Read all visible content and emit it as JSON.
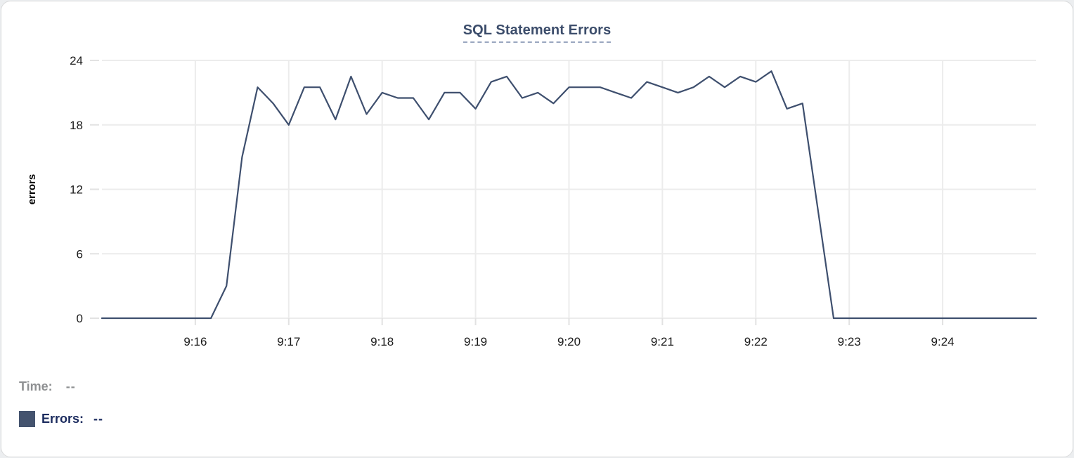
{
  "panel": {
    "background": "#ffffff",
    "border_color": "#d9dadb"
  },
  "chart_data": {
    "type": "line",
    "title": "SQL Statement Errors",
    "ylabel": "errors",
    "xlabel": "",
    "ylim": [
      0,
      24
    ],
    "y_ticks": [
      0,
      6,
      12,
      18,
      24
    ],
    "x_tick_labels": [
      "9:16",
      "9:17",
      "9:18",
      "9:19",
      "9:20",
      "9:21",
      "9:22",
      "9:23",
      "9:24"
    ],
    "x_start": "9:15:00",
    "x_end": "9:25:00",
    "sample_interval_seconds": 10,
    "grid": true,
    "legend_position": "bottom-left",
    "series": [
      {
        "name": "Errors",
        "color": "#3e4f6e",
        "times": [
          "9:15:00",
          "9:15:10",
          "9:15:20",
          "9:15:30",
          "9:15:40",
          "9:15:50",
          "9:16:00",
          "9:16:10",
          "9:16:20",
          "9:16:30",
          "9:16:40",
          "9:16:50",
          "9:17:00",
          "9:17:10",
          "9:17:20",
          "9:17:30",
          "9:17:40",
          "9:17:50",
          "9:18:00",
          "9:18:10",
          "9:18:20",
          "9:18:30",
          "9:18:40",
          "9:18:50",
          "9:19:00",
          "9:19:10",
          "9:19:20",
          "9:19:30",
          "9:19:40",
          "9:19:50",
          "9:20:00",
          "9:20:10",
          "9:20:20",
          "9:20:30",
          "9:20:40",
          "9:20:50",
          "9:21:00",
          "9:21:10",
          "9:21:20",
          "9:21:30",
          "9:21:40",
          "9:21:50",
          "9:22:00",
          "9:22:10",
          "9:22:20",
          "9:22:30",
          "9:22:40",
          "9:22:50",
          "9:23:00",
          "9:23:10",
          "9:23:20",
          "9:23:30",
          "9:23:40",
          "9:23:50",
          "9:24:00",
          "9:24:10",
          "9:24:20",
          "9:24:30",
          "9:24:40",
          "9:24:50",
          "9:25:00"
        ],
        "values": [
          0,
          0,
          0,
          0,
          0,
          0,
          0,
          0,
          3,
          15,
          21.5,
          20,
          18,
          21.5,
          21.5,
          18.5,
          22.5,
          19,
          21,
          20.5,
          20.5,
          18.5,
          21,
          21,
          19.5,
          22,
          22.5,
          20.5,
          21,
          20,
          21.5,
          21.5,
          21.5,
          21,
          20.5,
          22,
          21.5,
          21,
          21.5,
          22.5,
          21.5,
          22.5,
          22,
          23,
          19.5,
          20,
          10,
          0,
          0,
          0,
          0,
          0,
          0,
          0,
          0,
          0,
          0,
          0,
          0,
          0,
          0
        ]
      }
    ],
    "colors": {
      "gridline": "#ececec",
      "tick_mark": "#e2e2e2",
      "axis_text": "#1a1a1a",
      "title_text": "#3c4d6b",
      "title_underline": "#9aa7c0"
    }
  },
  "legend": {
    "time_label": "Time:",
    "time_value": "--",
    "errors_label": "Errors:",
    "errors_value": "--",
    "swatch_color": "#44536e"
  }
}
